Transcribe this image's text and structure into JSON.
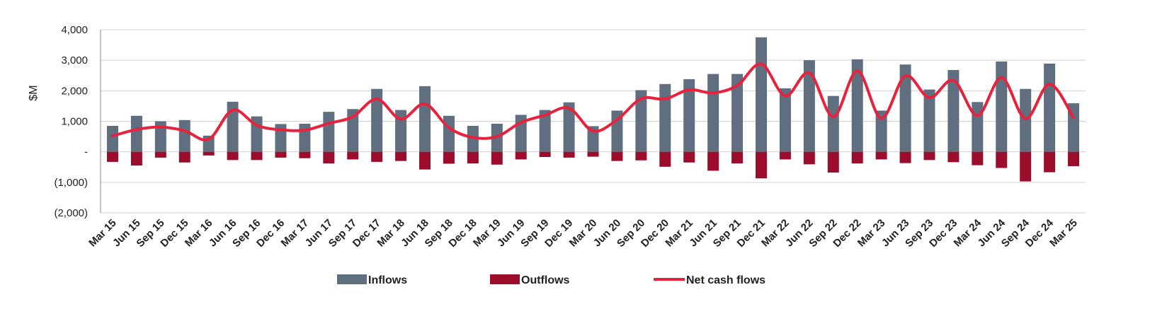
{
  "chart_data": {
    "type": "bar",
    "ylabel": "$M",
    "ylim": [
      -2000,
      4000
    ],
    "y_ticks": [
      {
        "value": 4000,
        "label": "4,000"
      },
      {
        "value": 3000,
        "label": "3,000"
      },
      {
        "value": 2000,
        "label": "2,000"
      },
      {
        "value": 1000,
        "label": "1,000"
      },
      {
        "value": 0,
        "label": "-"
      },
      {
        "value": -1000,
        "label": "(1,000)"
      },
      {
        "value": -2000,
        "label": "(2,000)"
      }
    ],
    "grid": true,
    "legend_position": "bottom-center",
    "categories": [
      "Mar 15",
      "Jun 15",
      "Sep 15",
      "Dec 15",
      "Mar 16",
      "Jun 16",
      "Sep 16",
      "Dec 16",
      "Mar 17",
      "Jun 17",
      "Sep 17",
      "Dec 17",
      "Mar 18",
      "Jun 18",
      "Sep 18",
      "Dec 18",
      "Mar 19",
      "Jun 19",
      "Sep 19",
      "Dec 19",
      "Mar 20",
      "Jun 20",
      "Sep 20",
      "Dec 20",
      "Mar 21",
      "Jun 21",
      "Sep 21",
      "Dec 21",
      "Mar 22",
      "Jun 22",
      "Sep 22",
      "Dec 22",
      "Mar 23",
      "Jun 23",
      "Sep 23",
      "Dec 23",
      "Mar 24",
      "Jun 24",
      "Sep 24",
      "Dec 24",
      "Mar 25"
    ],
    "series": [
      {
        "name": "Inflows",
        "kind": "bar",
        "color": "#5f6f80",
        "values": [
          850,
          1180,
          1000,
          1040,
          530,
          1640,
          1160,
          910,
          920,
          1310,
          1400,
          2060,
          1370,
          2150,
          1180,
          850,
          920,
          1210,
          1370,
          1620,
          840,
          1350,
          2020,
          2220,
          2380,
          2550,
          2550,
          3750,
          2080,
          3000,
          1830,
          3030,
          1350,
          2860,
          2040,
          2680,
          1630,
          2960,
          2060,
          2890,
          1590
        ]
      },
      {
        "name": "Outflows",
        "kind": "bar",
        "color": "#9b0d2b",
        "values": [
          -330,
          -450,
          -190,
          -350,
          -120,
          -270,
          -270,
          -190,
          -210,
          -380,
          -250,
          -330,
          -300,
          -580,
          -390,
          -380,
          -420,
          -250,
          -170,
          -190,
          -160,
          -300,
          -280,
          -490,
          -350,
          -620,
          -380,
          -870,
          -250,
          -410,
          -680,
          -380,
          -250,
          -370,
          -270,
          -340,
          -440,
          -530,
          -970,
          -670,
          -470
        ]
      },
      {
        "name": "Net cash flows",
        "kind": "line",
        "color": "#e8213c",
        "values": [
          520,
          730,
          810,
          690,
          410,
          1370,
          870,
          720,
          710,
          930,
          1150,
          1730,
          1070,
          1570,
          790,
          470,
          500,
          960,
          1200,
          1430,
          680,
          1050,
          1740,
          1730,
          2030,
          1930,
          2170,
          2880,
          1830,
          2590,
          1150,
          2650,
          1100,
          2490,
          1770,
          2340,
          1190,
          2430,
          1090,
          2220,
          1120
        ]
      }
    ]
  }
}
